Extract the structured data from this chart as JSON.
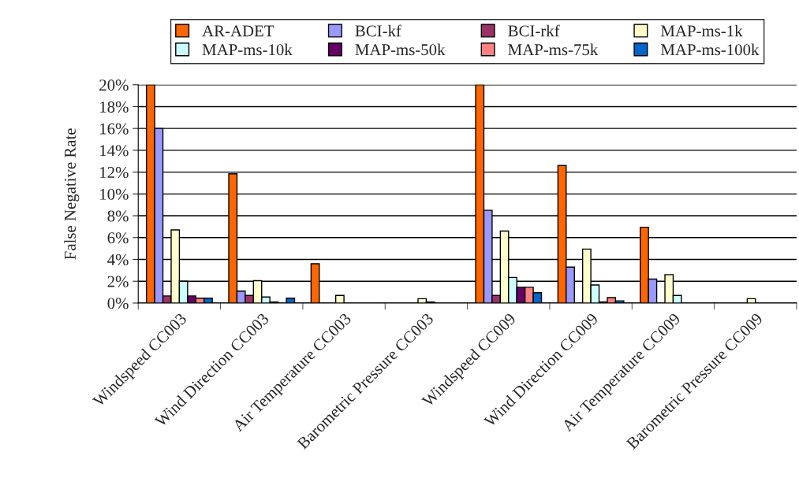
{
  "chart_data": {
    "type": "bar",
    "ylabel": "False Negative Rate",
    "categories": [
      "Windspeed CC003",
      "Wind Direction CC003",
      "Air Temperature CC003",
      "Barometric Pressure CC003",
      "Windspeed CC009",
      "Wind Direction CC009",
      "Air Temperature CC009",
      "Barometric Pressure CC009"
    ],
    "series": [
      {
        "name": "AR-ADET",
        "color": "#ff6600",
        "values": [
          20,
          11.85,
          3.6,
          0,
          20,
          12.6,
          6.95,
          0
        ]
      },
      {
        "name": "BCI-kf",
        "color": "#9999ff",
        "values": [
          16.0,
          1.1,
          0,
          0,
          8.5,
          3.3,
          2.2,
          0
        ]
      },
      {
        "name": "BCI-rkf",
        "color": "#993366",
        "values": [
          0.65,
          0.7,
          0,
          0,
          0.7,
          0,
          0,
          0
        ]
      },
      {
        "name": "MAP-ms-1k",
        "color": "#ffffcc",
        "values": [
          6.7,
          2.05,
          0.7,
          0.4,
          6.6,
          4.95,
          2.6,
          0.4
        ]
      },
      {
        "name": "MAP-ms-10k",
        "color": "#ccffff",
        "values": [
          2.0,
          0.55,
          0,
          0.1,
          2.35,
          1.65,
          0.7,
          0
        ]
      },
      {
        "name": "MAP-ms-50k",
        "color": "#660066",
        "values": [
          0.65,
          0.1,
          0,
          0,
          1.45,
          0.1,
          0,
          0
        ]
      },
      {
        "name": "MAP-ms-75k",
        "color": "#ff8080",
        "values": [
          0.45,
          0,
          0,
          0,
          1.45,
          0.5,
          0,
          0
        ]
      },
      {
        "name": "MAP-ms-100k",
        "color": "#0066cc",
        "values": [
          0.45,
          0.45,
          0,
          0,
          0.95,
          0.2,
          0,
          0
        ]
      }
    ],
    "ylim": [
      0,
      20
    ],
    "yticks": [
      {
        "value": 0,
        "label": "0%"
      },
      {
        "value": 2,
        "label": "2%"
      },
      {
        "value": 4,
        "label": "4%"
      },
      {
        "value": 6,
        "label": "6%"
      },
      {
        "value": 8,
        "label": "8%"
      },
      {
        "value": 10,
        "label": "10%"
      },
      {
        "value": 12,
        "label": "12%"
      },
      {
        "value": 14,
        "label": "14%"
      },
      {
        "value": 16,
        "label": "16%"
      },
      {
        "value": 18,
        "label": "18%"
      },
      {
        "value": 20,
        "label": "20%"
      }
    ],
    "grid": "y",
    "legend": "top"
  }
}
